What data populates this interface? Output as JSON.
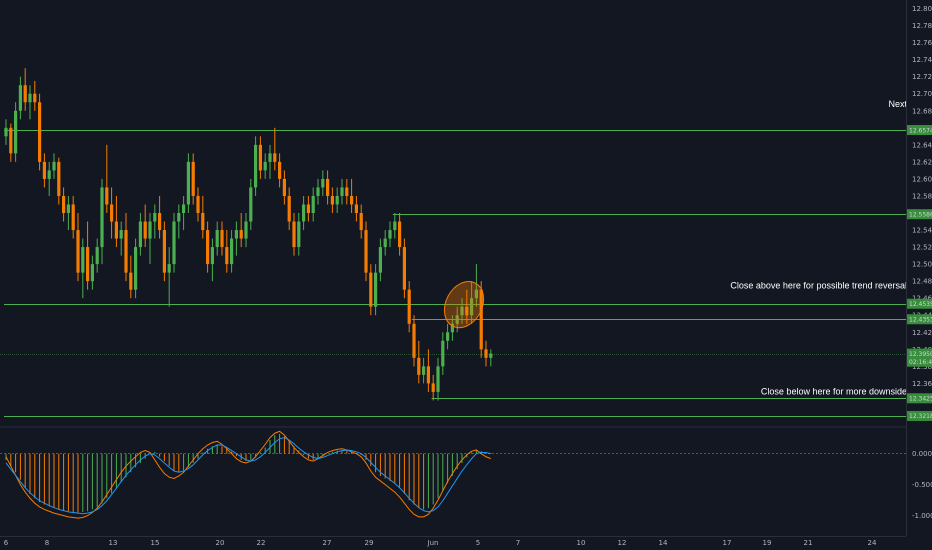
{
  "chart_data": [
    {
      "type": "candlestick",
      "ylim": [
        12.31,
        12.81
      ],
      "grid": false,
      "colors": {
        "up": "#4caf50",
        "down": "#f57c00",
        "level": "#4caf50",
        "background": "#131722"
      },
      "x_ticks": [
        "6",
        "8",
        "13",
        "15",
        "20",
        "22",
        "27",
        "29",
        "Jun",
        "5",
        "7",
        "10",
        "12",
        "14",
        "17",
        "19",
        "21",
        "24"
      ],
      "y_ticks": [
        "12.8000",
        "12.7800",
        "12.7600",
        "12.7400",
        "12.7200",
        "12.7000",
        "12.6800",
        "12.6600",
        "12.6400",
        "12.6200",
        "12.6000",
        "12.5800",
        "12.5600",
        "12.5400",
        "12.5200",
        "12.5000",
        "12.4800",
        "12.4600",
        "12.4400",
        "12.4200",
        "12.4000",
        "12.3800",
        "12.3600",
        "12.3400"
      ],
      "price_labels": [
        {
          "text": "12.6574",
          "value": 12.6574
        },
        {
          "text": "12.5586",
          "value": 12.5586
        },
        {
          "text": "12.4535",
          "value": 12.4535
        },
        {
          "text": "12.4353",
          "value": 12.4353
        },
        {
          "text": "12.3950",
          "value": 12.395
        },
        {
          "text": "02:16:48",
          "value": 12.3855
        },
        {
          "text": "12.3425",
          "value": 12.3425
        },
        {
          "text": "12.3218",
          "value": 12.3218
        }
      ],
      "horizontal_levels": [
        {
          "value": 12.6574,
          "from_x": 0
        },
        {
          "value": 12.5586,
          "from_x": 0.431
        },
        {
          "value": 12.4535,
          "from_x": 0
        },
        {
          "value": 12.4353,
          "from_x": 0.452
        },
        {
          "value": 12.3425,
          "from_x": 0.474
        },
        {
          "value": 12.3218,
          "from_x": 0
        }
      ],
      "current_price": 12.395,
      "annotations": [
        {
          "text": "Next",
          "value": 12.68
        },
        {
          "text": "Close above here for possible trend reversal",
          "value": 12.4666
        },
        {
          "text": "Close below here for more downside",
          "value": 12.3425
        }
      ],
      "highlight_ellipse": {
        "x_from": 0.49,
        "x_to": 0.53,
        "y_from": 12.424,
        "y_to": 12.481
      },
      "candles": [
        [
          12.65,
          12.67,
          12.64,
          12.66
        ],
        [
          12.66,
          12.665,
          12.62,
          12.63
        ],
        [
          12.63,
          12.69,
          12.62,
          12.68
        ],
        [
          12.68,
          12.72,
          12.67,
          12.71
        ],
        [
          12.71,
          12.73,
          12.68,
          12.69
        ],
        [
          12.69,
          12.71,
          12.67,
          12.7
        ],
        [
          12.7,
          12.715,
          12.68,
          12.69
        ],
        [
          12.69,
          12.7,
          12.61,
          12.62
        ],
        [
          12.62,
          12.63,
          12.59,
          12.6
        ],
        [
          12.6,
          12.62,
          12.58,
          12.61
        ],
        [
          12.61,
          12.63,
          12.6,
          12.62
        ],
        [
          12.62,
          12.625,
          12.57,
          12.58
        ],
        [
          12.58,
          12.59,
          12.55,
          12.56
        ],
        [
          12.56,
          12.58,
          12.54,
          12.57
        ],
        [
          12.57,
          12.58,
          12.53,
          12.54
        ],
        [
          12.54,
          12.56,
          12.48,
          12.49
        ],
        [
          12.49,
          12.53,
          12.46,
          12.52
        ],
        [
          12.52,
          12.55,
          12.47,
          12.48
        ],
        [
          12.48,
          12.51,
          12.47,
          12.5
        ],
        [
          12.5,
          12.53,
          12.49,
          12.52
        ],
        [
          12.52,
          12.6,
          12.5,
          12.59
        ],
        [
          12.59,
          12.64,
          12.56,
          12.57
        ],
        [
          12.57,
          12.59,
          12.53,
          12.55
        ],
        [
          12.55,
          12.58,
          12.52,
          12.53
        ],
        [
          12.53,
          12.55,
          12.51,
          12.54
        ],
        [
          12.54,
          12.56,
          12.48,
          12.49
        ],
        [
          12.49,
          12.51,
          12.46,
          12.47
        ],
        [
          12.47,
          12.53,
          12.46,
          12.52
        ],
        [
          12.52,
          12.56,
          12.51,
          12.55
        ],
        [
          12.55,
          12.57,
          12.52,
          12.53
        ],
        [
          12.53,
          12.56,
          12.5,
          12.55
        ],
        [
          12.55,
          12.57,
          12.53,
          12.56
        ],
        [
          12.56,
          12.58,
          12.53,
          12.54
        ],
        [
          12.54,
          12.55,
          12.48,
          12.49
        ],
        [
          12.49,
          12.52,
          12.45,
          12.5
        ],
        [
          12.5,
          12.56,
          12.49,
          12.55
        ],
        [
          12.55,
          12.57,
          12.53,
          12.56
        ],
        [
          12.56,
          12.58,
          12.54,
          12.57
        ],
        [
          12.57,
          12.63,
          12.56,
          12.62
        ],
        [
          12.62,
          12.63,
          12.57,
          12.58
        ],
        [
          12.58,
          12.59,
          12.55,
          12.56
        ],
        [
          12.56,
          12.58,
          12.53,
          12.54
        ],
        [
          12.54,
          12.55,
          12.49,
          12.5
        ],
        [
          12.5,
          12.53,
          12.48,
          12.52
        ],
        [
          12.52,
          12.55,
          12.51,
          12.54
        ],
        [
          12.54,
          12.55,
          12.51,
          12.52
        ],
        [
          12.52,
          12.54,
          12.49,
          12.5
        ],
        [
          12.5,
          12.54,
          12.49,
          12.53
        ],
        [
          12.53,
          12.55,
          12.51,
          12.54
        ],
        [
          12.54,
          12.56,
          12.52,
          12.53
        ],
        [
          12.53,
          12.56,
          12.52,
          12.55
        ],
        [
          12.55,
          12.6,
          12.54,
          12.59
        ],
        [
          12.59,
          12.65,
          12.58,
          12.64
        ],
        [
          12.64,
          12.65,
          12.6,
          12.61
        ],
        [
          12.61,
          12.63,
          12.6,
          12.62
        ],
        [
          12.62,
          12.64,
          12.6,
          12.63
        ],
        [
          12.63,
          12.66,
          12.61,
          12.62
        ],
        [
          12.62,
          12.63,
          12.59,
          12.6
        ],
        [
          12.6,
          12.61,
          12.57,
          12.58
        ],
        [
          12.58,
          12.59,
          12.54,
          12.55
        ],
        [
          12.55,
          12.56,
          12.51,
          12.52
        ],
        [
          12.52,
          12.56,
          12.51,
          12.55
        ],
        [
          12.55,
          12.58,
          12.54,
          12.57
        ],
        [
          12.57,
          12.58,
          12.55,
          12.56
        ],
        [
          12.56,
          12.59,
          12.55,
          12.58
        ],
        [
          12.58,
          12.6,
          12.57,
          12.59
        ],
        [
          12.59,
          12.61,
          12.58,
          12.6
        ],
        [
          12.6,
          12.61,
          12.57,
          12.58
        ],
        [
          12.58,
          12.59,
          12.56,
          12.57
        ],
        [
          12.57,
          12.59,
          12.56,
          12.58
        ],
        [
          12.58,
          12.6,
          12.57,
          12.59
        ],
        [
          12.59,
          12.6,
          12.57,
          12.58
        ],
        [
          12.58,
          12.6,
          12.56,
          12.57
        ],
        [
          12.57,
          12.58,
          12.55,
          12.56
        ],
        [
          12.56,
          12.57,
          12.53,
          12.54
        ],
        [
          12.54,
          12.55,
          12.48,
          12.49
        ],
        [
          12.49,
          12.5,
          12.44,
          12.45
        ],
        [
          12.45,
          12.5,
          12.44,
          12.49
        ],
        [
          12.49,
          12.53,
          12.48,
          12.52
        ],
        [
          12.52,
          12.54,
          12.51,
          12.53
        ],
        [
          12.53,
          12.55,
          12.52,
          12.54
        ],
        [
          12.54,
          12.56,
          12.53,
          12.55
        ],
        [
          12.55,
          12.56,
          12.51,
          12.52
        ],
        [
          12.52,
          12.53,
          12.46,
          12.47
        ],
        [
          12.47,
          12.48,
          12.42,
          12.43
        ],
        [
          12.43,
          12.44,
          12.38,
          12.39
        ],
        [
          12.39,
          12.41,
          12.36,
          12.37
        ],
        [
          12.37,
          12.39,
          12.36,
          12.38
        ],
        [
          12.38,
          12.4,
          12.35,
          12.36
        ],
        [
          12.36,
          12.37,
          12.34,
          12.35
        ],
        [
          12.35,
          12.39,
          12.34,
          12.38
        ],
        [
          12.38,
          12.42,
          12.37,
          12.41
        ],
        [
          12.41,
          12.43,
          12.4,
          12.42
        ],
        [
          12.42,
          12.44,
          12.41,
          12.43
        ],
        [
          12.43,
          12.45,
          12.42,
          12.44
        ],
        [
          12.44,
          12.46,
          12.43,
          12.45
        ],
        [
          12.45,
          12.47,
          12.43,
          12.44
        ],
        [
          12.44,
          12.48,
          12.43,
          12.46
        ],
        [
          12.46,
          12.5,
          12.45,
          12.47
        ],
        [
          12.47,
          12.48,
          12.39,
          12.4
        ],
        [
          12.4,
          12.41,
          12.38,
          12.39
        ],
        [
          12.39,
          12.4,
          12.38,
          12.395
        ]
      ]
    },
    {
      "type": "bar",
      "ylim": [
        -1.2,
        0.35
      ],
      "y_ticks": [
        "0.0000",
        "-0.5000",
        "-1.0000"
      ],
      "y_tick_values": [
        0,
        -0.5,
        -1.0
      ],
      "zero_line": true,
      "histogram": [
        -0.1,
        -0.2,
        -0.3,
        -0.42,
        -0.55,
        -0.65,
        -0.72,
        -0.78,
        -0.82,
        -0.85,
        -0.88,
        -0.9,
        -0.92,
        -0.93,
        -0.94,
        -0.95,
        -0.94,
        -0.93,
        -0.9,
        -0.86,
        -0.8,
        -0.72,
        -0.64,
        -0.55,
        -0.46,
        -0.38,
        -0.3,
        -0.22,
        -0.15,
        -0.08,
        0.02,
        0.03,
        -0.05,
        -0.12,
        -0.2,
        -0.28,
        -0.3,
        -0.27,
        -0.22,
        -0.15,
        -0.08,
        0.02,
        0.08,
        0.12,
        0.15,
        0.12,
        0.08,
        0.03,
        -0.04,
        -0.1,
        -0.12,
        -0.1,
        -0.05,
        0.02,
        0.1,
        0.22,
        0.3,
        0.32,
        0.28,
        0.2,
        0.12,
        0.05,
        -0.02,
        -0.08,
        -0.1,
        -0.08,
        -0.04,
        0.0,
        0.03,
        0.05,
        0.06,
        0.05,
        0.03,
        0.01,
        -0.02,
        -0.1,
        -0.2,
        -0.3,
        -0.36,
        -0.4,
        -0.44,
        -0.48,
        -0.55,
        -0.65,
        -0.75,
        -0.82,
        -0.88,
        -0.9,
        -0.88,
        -0.82,
        -0.72,
        -0.6,
        -0.48,
        -0.36,
        -0.25,
        -0.15,
        -0.06,
        0.02,
        0.05,
        0.04,
        0.02,
        0.01
      ],
      "series": [
        {
          "values": [
            -0.05,
            -0.2,
            -0.35,
            -0.5,
            -0.62,
            -0.72,
            -0.8,
            -0.86,
            -0.9,
            -0.93,
            -0.96,
            -0.98,
            -1.0,
            -1.02,
            -1.03,
            -1.04,
            -1.03,
            -1.0,
            -0.95,
            -0.88,
            -0.78,
            -0.66,
            -0.54,
            -0.42,
            -0.3,
            -0.2,
            -0.12,
            -0.05,
            0.02,
            0.05,
            0.02,
            -0.1,
            -0.22,
            -0.32,
            -0.38,
            -0.4,
            -0.36,
            -0.3,
            -0.2,
            -0.1,
            0.0,
            0.08,
            0.14,
            0.18,
            0.2,
            0.15,
            0.08,
            0.0,
            -0.08,
            -0.13,
            -0.15,
            -0.12,
            -0.05,
            0.05,
            0.15,
            0.26,
            0.33,
            0.36,
            0.3,
            0.2,
            0.1,
            0.02,
            -0.05,
            -0.1,
            -0.12,
            -0.08,
            -0.03,
            0.02,
            0.05,
            0.07,
            0.08,
            0.06,
            0.03,
            0.0,
            -0.05,
            -0.15,
            -0.28,
            -0.38,
            -0.44,
            -0.5,
            -0.56,
            -0.62,
            -0.7,
            -0.8,
            -0.9,
            -0.98,
            -1.02,
            -1.02,
            -0.98,
            -0.88,
            -0.75,
            -0.6,
            -0.45,
            -0.32,
            -0.2,
            -0.1,
            -0.02,
            0.04,
            0.06,
            0.0,
            -0.05,
            -0.08
          ]
        },
        {
          "values": [
            -0.15,
            -0.25,
            -0.35,
            -0.45,
            -0.55,
            -0.63,
            -0.7,
            -0.76,
            -0.8,
            -0.84,
            -0.87,
            -0.9,
            -0.92,
            -0.94,
            -0.95,
            -0.96,
            -0.97,
            -0.96,
            -0.94,
            -0.9,
            -0.84,
            -0.76,
            -0.66,
            -0.56,
            -0.45,
            -0.35,
            -0.26,
            -0.18,
            -0.1,
            -0.04,
            0.0,
            -0.02,
            -0.08,
            -0.15,
            -0.22,
            -0.28,
            -0.3,
            -0.28,
            -0.24,
            -0.18,
            -0.1,
            -0.02,
            0.05,
            0.1,
            0.14,
            0.14,
            0.1,
            0.05,
            0.0,
            -0.05,
            -0.1,
            -0.12,
            -0.1,
            -0.05,
            0.02,
            0.1,
            0.18,
            0.24,
            0.26,
            0.22,
            0.16,
            0.09,
            0.03,
            -0.02,
            -0.06,
            -0.08,
            -0.06,
            -0.03,
            0.0,
            0.03,
            0.05,
            0.06,
            0.05,
            0.03,
            0.0,
            -0.06,
            -0.14,
            -0.22,
            -0.3,
            -0.36,
            -0.42,
            -0.48,
            -0.55,
            -0.63,
            -0.72,
            -0.8,
            -0.87,
            -0.92,
            -0.94,
            -0.92,
            -0.86,
            -0.76,
            -0.64,
            -0.52,
            -0.4,
            -0.28,
            -0.18,
            -0.08,
            0.0,
            0.02,
            0.02,
            0.0
          ]
        }
      ]
    }
  ]
}
